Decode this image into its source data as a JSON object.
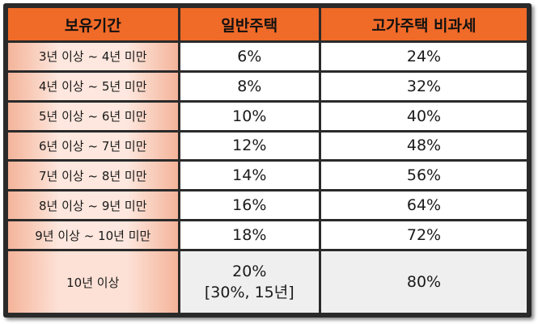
{
  "table": {
    "headers": [
      "보유기간",
      "일반주택",
      "고가주택 비과세"
    ],
    "rows": [
      {
        "period": "3년 이상 ~ 4년 미만",
        "general": "6%",
        "luxury": "24%"
      },
      {
        "period": "4년 이상 ~ 5년 미만",
        "general": "8%",
        "luxury": "32%"
      },
      {
        "period": "5년 이상 ~ 6년 미만",
        "general": "10%",
        "luxury": "40%"
      },
      {
        "period": "6년 이상 ~ 7년 미만",
        "general": "12%",
        "luxury": "48%"
      },
      {
        "period": "7년 이상 ~ 8년 미만",
        "general": "14%",
        "luxury": "56%"
      },
      {
        "period": "8년 이상 ~ 9년 미만",
        "general": "16%",
        "luxury": "64%"
      },
      {
        "period": "9년 이상 ~ 10년 미만",
        "general": "18%",
        "luxury": "72%"
      },
      {
        "period": "10년 이상",
        "general": "20%",
        "general_note": "[30%, 15년]",
        "luxury": "80%"
      }
    ]
  },
  "colors": {
    "header_bg": "#f06a28",
    "border": "#2a2a2a",
    "period_bg": "#fde7de",
    "period_edge": "#f4b49a",
    "value_bg": "#ffffff",
    "last_value_bg": "#efefef"
  }
}
